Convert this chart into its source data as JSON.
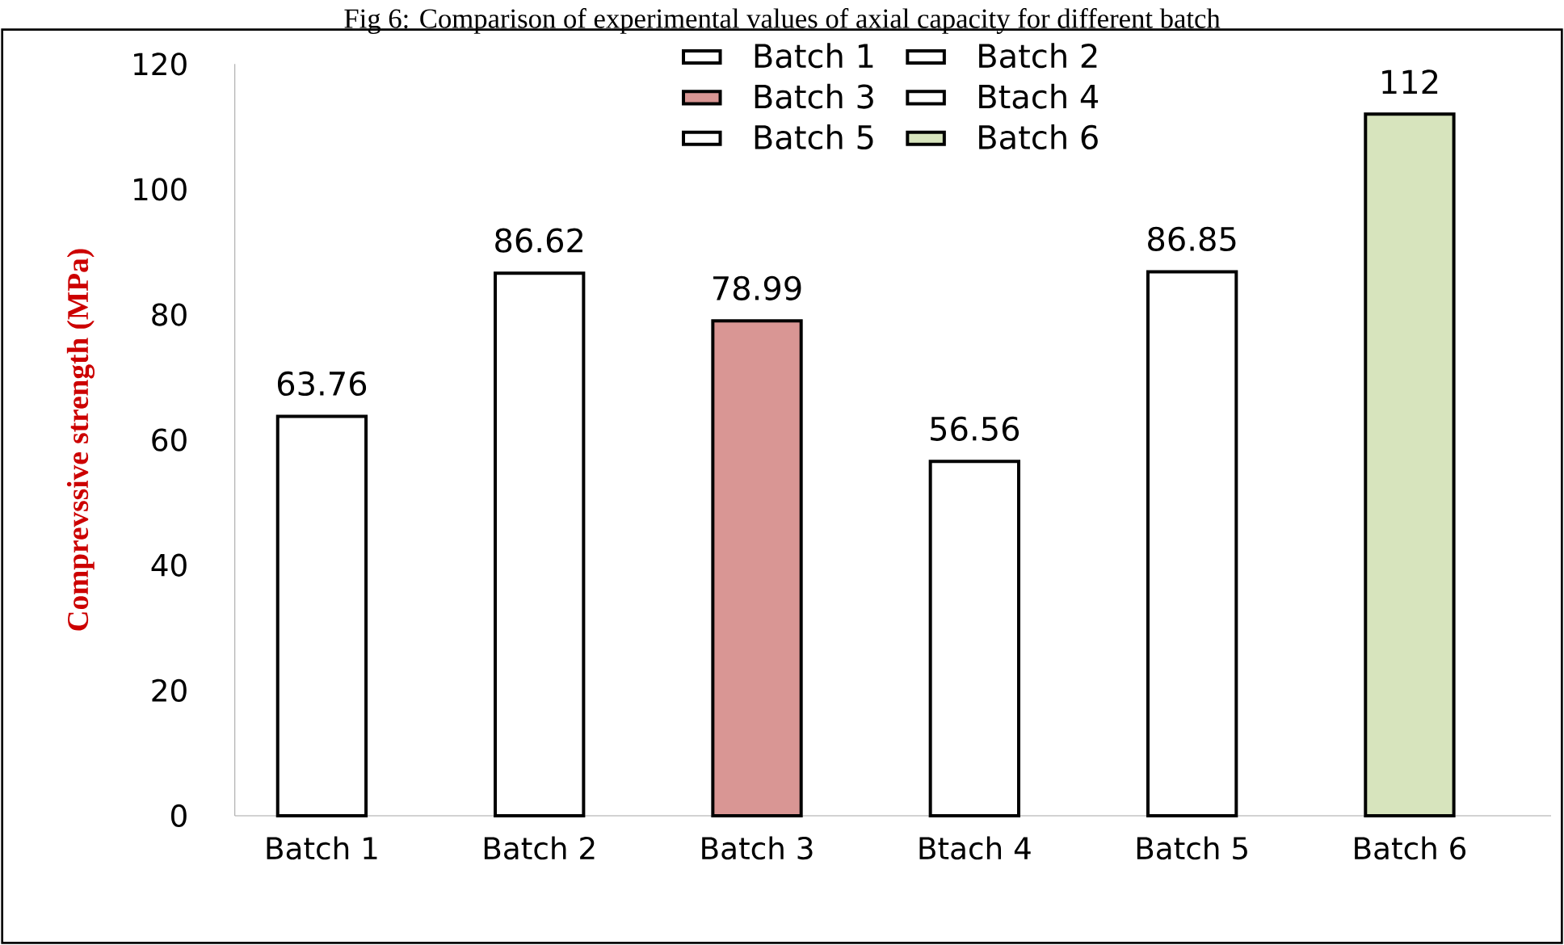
{
  "chart_data": {
    "type": "bar",
    "title": "Fig 6: Comparison of experimental values of axial capacity for different batch",
    "ylabel": "Comprevssive strength (MPa)",
    "categories": [
      "Batch 1",
      "Batch 2",
      "Batch 3",
      "Btach 4",
      "Batch 5",
      "Batch 6"
    ],
    "series": [
      {
        "name": "Batch 1",
        "color": "#ffffff",
        "values": [
          63.76,
          null,
          null,
          null,
          null,
          null
        ]
      },
      {
        "name": "Batch 2",
        "color": "#ffffff",
        "values": [
          null,
          86.62,
          null,
          null,
          null,
          null
        ]
      },
      {
        "name": "Batch 3",
        "color": "#d99694",
        "values": [
          null,
          null,
          78.99,
          null,
          null,
          null
        ]
      },
      {
        "name": "Btach 4",
        "color": "#ffffff",
        "values": [
          null,
          null,
          null,
          56.56,
          null,
          null
        ]
      },
      {
        "name": "Batch 5",
        "color": "#ffffff",
        "values": [
          null,
          null,
          null,
          null,
          86.85,
          null
        ]
      },
      {
        "name": "Batch 6",
        "color": "#d7e4bd",
        "values": [
          null,
          null,
          null,
          null,
          null,
          112
        ]
      }
    ],
    "ylim": [
      0,
      120
    ],
    "yticks": [
      0,
      20,
      40,
      60,
      80,
      100,
      120
    ],
    "grid": false,
    "legend": "top",
    "data_labels": true
  }
}
